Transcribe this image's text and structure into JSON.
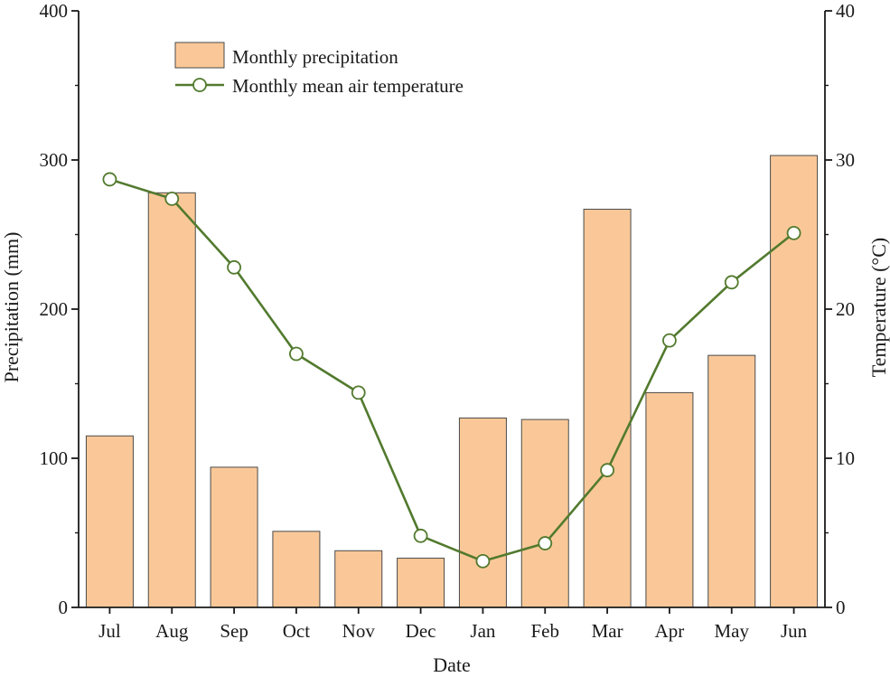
{
  "chart_data": {
    "type": "bar+line",
    "categories": [
      "Jul",
      "Aug",
      "Sep",
      "Oct",
      "Nov",
      "Dec",
      "Jan",
      "Feb",
      "Mar",
      "Apr",
      "May",
      "Jun"
    ],
    "series": [
      {
        "name": "Monthly precipitation",
        "kind": "bar",
        "axis": "left",
        "values": [
          115,
          278,
          94,
          51,
          38,
          33,
          127,
          126,
          267,
          144,
          169,
          303
        ]
      },
      {
        "name": "Monthly mean air  temperature",
        "kind": "line",
        "axis": "right",
        "values": [
          28.7,
          27.4,
          22.8,
          17.0,
          14.4,
          4.8,
          3.1,
          4.3,
          9.2,
          17.9,
          21.8,
          25.1
        ]
      }
    ],
    "xlabel": "Date",
    "ylabel_left": "Precipitation (mm)",
    "ylabel_right": "Temperature (°C)",
    "ylim_left": [
      0,
      400
    ],
    "ylim_right": [
      0,
      40
    ],
    "yticks_left": [
      "0",
      "100",
      "200",
      "300",
      "400"
    ],
    "yticks_right": [
      "0",
      "10",
      "20",
      "30",
      "40"
    ],
    "legend_position": "top-left",
    "colors": {
      "bar_fill": "#FAC898",
      "bar_stroke": "#4a4a4a",
      "line": "#527A2E",
      "marker_fill": "#ffffff"
    }
  }
}
